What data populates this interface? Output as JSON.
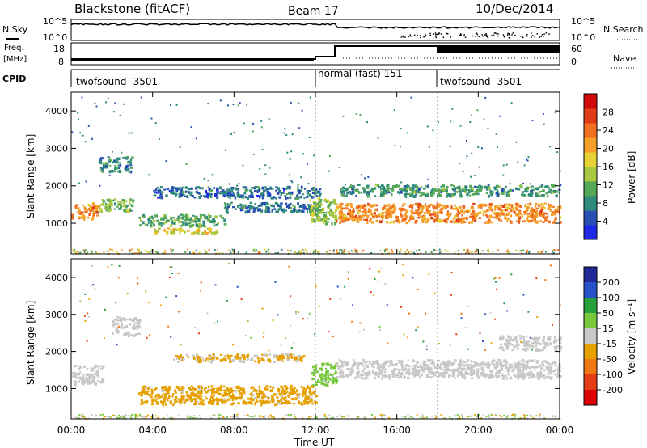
{
  "header": {
    "station": "Blackstone (fitACF)",
    "beam": "Beam 17",
    "date": "10/Dec/2014"
  },
  "noise_panel": {
    "left_label": "N.Sky",
    "left_ticks": [
      "10^5",
      "10^0"
    ],
    "right_ticks": [
      "10^5",
      "10^0"
    ],
    "right_label": "N.Search"
  },
  "freq_panel": {
    "left_label_1": "Freq.",
    "left_label_2": "[MHz]",
    "left_ticks": [
      "18",
      "8"
    ],
    "right_ticks": [
      "60",
      "0"
    ],
    "right_label": "Nave"
  },
  "cpid_panel": {
    "label": "CPID",
    "segments": [
      {
        "name": "twofsound -3501",
        "start_hour": 0.0
      },
      {
        "name": "normal (fast) 151",
        "start_hour": 13.0
      },
      {
        "name": "twofsound -3501",
        "start_hour": 18.0
      }
    ]
  },
  "x_axis": {
    "label": "Time UT",
    "ticks": [
      "00:00",
      "04:00",
      "08:00",
      "12:00",
      "16:00",
      "20:00",
      "00:00"
    ]
  },
  "y_axis": {
    "label": "Slant Range [km]",
    "ticks": [
      "1000",
      "2000",
      "3000",
      "4000"
    ]
  },
  "colorbars": {
    "power": {
      "label": "Power [dB]",
      "ticks": [
        "4",
        "8",
        "12",
        "16",
        "20",
        "24",
        "28"
      ],
      "colors": [
        "#1e28e6",
        "#2850b4",
        "#2e8a7a",
        "#54a858",
        "#a8c840",
        "#e6d232",
        "#f5a028",
        "#f07020",
        "#e03c18",
        "#d20a0a"
      ]
    },
    "velocity": {
      "label": "Velocity [m s⁻¹]",
      "ticks": [
        "200",
        "100",
        "50",
        "15",
        "-15",
        "-50",
        "-100",
        "-200"
      ],
      "colors": [
        "#1e2896",
        "#2850c8",
        "#28a03c",
        "#78c83c",
        "#c8c8c8",
        "#e6a000",
        "#f07814",
        "#e63c14",
        "#dc0000"
      ]
    }
  },
  "chart_data": [
    {
      "type": "heatmap",
      "title": "Power",
      "xlabel": "Time UT",
      "ylabel": "Slant Range [km]",
      "xlim": [
        0,
        24
      ],
      "ylim": [
        180,
        4500
      ],
      "colorbar": "Power [dB]",
      "colorbar_range": [
        0,
        30
      ],
      "bands": [
        {
          "t0": 0.0,
          "t1": 1.3,
          "r_center": 1350,
          "r_width": 420,
          "value": 21
        },
        {
          "t0": 1.3,
          "t1": 3.0,
          "r_center": 1500,
          "r_width": 350,
          "value": 12
        },
        {
          "t0": 1.3,
          "t1": 3.0,
          "r_center": 2600,
          "r_width": 400,
          "value": 8
        },
        {
          "t0": 3.3,
          "t1": 7.5,
          "r_center": 1100,
          "r_width": 300,
          "value": 10
        },
        {
          "t0": 3.8,
          "t1": 7.2,
          "r_center": 820,
          "r_width": 140,
          "value": 16
        },
        {
          "t0": 4.0,
          "t1": 12.2,
          "r_center": 1850,
          "r_width": 300,
          "value": 6
        },
        {
          "t0": 7.5,
          "t1": 12.0,
          "r_center": 1450,
          "r_width": 250,
          "value": 7
        },
        {
          "t0": 11.7,
          "t1": 13.0,
          "r_center": 1350,
          "r_width": 700,
          "value": 13
        },
        {
          "t0": 13.0,
          "t1": 24.0,
          "r_center": 1300,
          "r_width": 500,
          "value": 21
        },
        {
          "t0": 13.2,
          "t1": 24.0,
          "r_center": 1900,
          "r_width": 300,
          "value": 9
        }
      ]
    },
    {
      "type": "heatmap",
      "title": "Velocity",
      "xlabel": "Time UT",
      "ylabel": "Slant Range [km]",
      "xlim": [
        0,
        24
      ],
      "ylim": [
        180,
        4500
      ],
      "colorbar": "Velocity [m s⁻¹]",
      "colorbar_range": [
        -200,
        200
      ],
      "bands": [
        {
          "t0": 0.0,
          "t1": 1.5,
          "r_center": 1400,
          "r_width": 500,
          "value": 0
        },
        {
          "t0": 2.0,
          "t1": 3.3,
          "r_center": 2700,
          "r_width": 500,
          "value": 0
        },
        {
          "t0": 3.3,
          "t1": 12.0,
          "r_center": 850,
          "r_width": 500,
          "value": -40
        },
        {
          "t0": 5.0,
          "t1": 11.5,
          "r_center": 1850,
          "r_width": 200,
          "value": -30
        },
        {
          "t0": 11.8,
          "t1": 13.0,
          "r_center": 1400,
          "r_width": 600,
          "value": 40
        },
        {
          "t0": 13.0,
          "t1": 24.0,
          "r_center": 1550,
          "r_width": 500,
          "value": 0
        },
        {
          "t0": 21.0,
          "t1": 24.0,
          "r_center": 2250,
          "r_width": 400,
          "value": 0
        }
      ]
    }
  ]
}
